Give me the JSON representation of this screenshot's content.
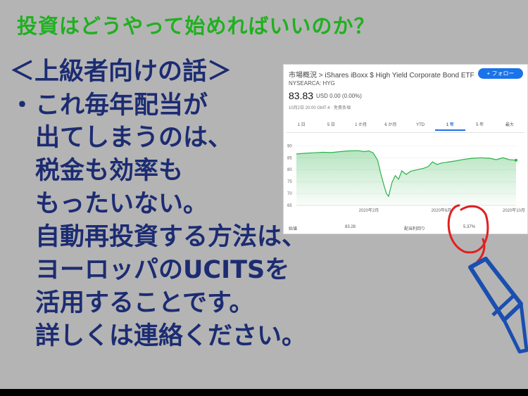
{
  "title": "投資はどうやって始めればいいのか？",
  "subheading": "＜上級者向けの話＞",
  "bullet": "・",
  "lines": [
    "これ毎年配当が",
    "出てしまうのは、",
    "税金も効率も",
    "もったいない。",
    "自動再投資する方法は、",
    "ヨーロッパのUCITSを",
    "活用することです。",
    "詳しくは連絡ください。"
  ],
  "card": {
    "breadcrumb": "市場概況 > iShares iBoxx $ High Yield Corporate Bond ETF",
    "follow": "+ フォロー",
    "ticker": "NYSEARCA: HYG",
    "price": "83.83",
    "change": "USD 0.00 (0.00%)",
    "timestamp": "10月2日 20:00 GMT-4 · 免責条項",
    "tabs": [
      "1 日",
      "5 日",
      "1 か月",
      "6 か月",
      "YTD",
      "1 年",
      "5 年",
      "最大"
    ],
    "active_tab": "1 年",
    "stats": [
      {
        "label": "始値",
        "value": "83.28"
      },
      {
        "label": "配当利回り",
        "value": "5.37%"
      }
    ]
  },
  "chart_data": {
    "type": "area",
    "yticks": [
      90,
      85,
      80,
      75,
      70,
      65
    ],
    "ylim": [
      65,
      91
    ],
    "xtick_labels": [
      "2020年2月",
      "2020年6月",
      "2020年10月"
    ],
    "xtick_positions": [
      0.33,
      0.66,
      0.99
    ],
    "points": [
      [
        0.0,
        86.6
      ],
      [
        0.04,
        86.9
      ],
      [
        0.08,
        87.1
      ],
      [
        0.12,
        87.3
      ],
      [
        0.16,
        87.2
      ],
      [
        0.2,
        87.6
      ],
      [
        0.24,
        87.9
      ],
      [
        0.28,
        88.0
      ],
      [
        0.31,
        87.6
      ],
      [
        0.33,
        87.9
      ],
      [
        0.35,
        87.0
      ],
      [
        0.37,
        84.0
      ],
      [
        0.385,
        78.0
      ],
      [
        0.4,
        73.0
      ],
      [
        0.41,
        70.0
      ],
      [
        0.42,
        68.8
      ],
      [
        0.435,
        74.5
      ],
      [
        0.45,
        77.5
      ],
      [
        0.465,
        76.0
      ],
      [
        0.48,
        79.5
      ],
      [
        0.5,
        78.0
      ],
      [
        0.52,
        79.3
      ],
      [
        0.55,
        80.0
      ],
      [
        0.58,
        80.6
      ],
      [
        0.6,
        81.3
      ],
      [
        0.62,
        83.3
      ],
      [
        0.64,
        82.2
      ],
      [
        0.66,
        82.8
      ],
      [
        0.69,
        83.2
      ],
      [
        0.72,
        83.6
      ],
      [
        0.76,
        84.3
      ],
      [
        0.8,
        84.8
      ],
      [
        0.84,
        85.0
      ],
      [
        0.88,
        84.8
      ],
      [
        0.91,
        84.2
      ],
      [
        0.94,
        85.0
      ],
      [
        0.97,
        84.2
      ],
      [
        1.0,
        84.0
      ]
    ],
    "color": "#2db34a"
  }
}
